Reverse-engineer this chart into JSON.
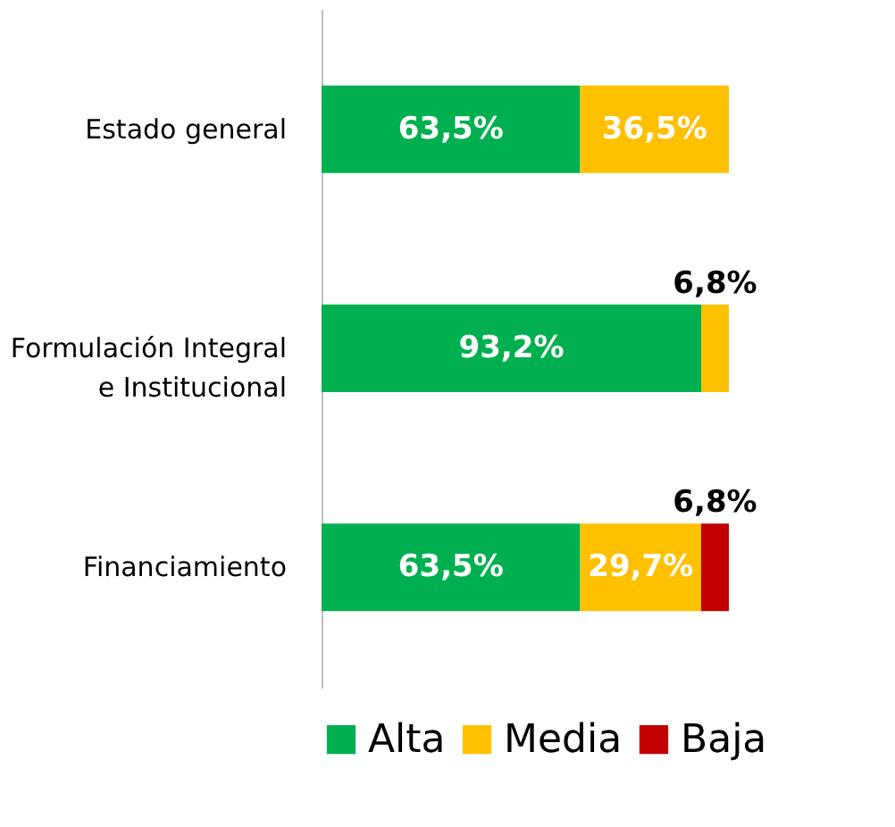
{
  "chart_data": {
    "type": "bar",
    "orientation": "horizontal",
    "stacked": true,
    "categories": [
      "Estado general",
      "Formulación Integral\ne Institucional",
      "Financiamiento"
    ],
    "series": [
      {
        "name": "Alta",
        "color": "#00b050",
        "values": [
          63.5,
          93.2,
          63.5
        ],
        "value_labels": [
          "63,5%",
          "93,2%",
          "63,5%"
        ]
      },
      {
        "name": "Media",
        "color": "#ffc000",
        "values": [
          36.5,
          6.8,
          29.7
        ],
        "value_labels": [
          "36,5%",
          "6,8%",
          "29,7%"
        ]
      },
      {
        "name": "Baja",
        "color": "#c00000",
        "values": [
          null,
          null,
          6.8
        ],
        "value_labels": [
          null,
          null,
          "6,8%"
        ]
      }
    ],
    "legend": "bottom"
  }
}
